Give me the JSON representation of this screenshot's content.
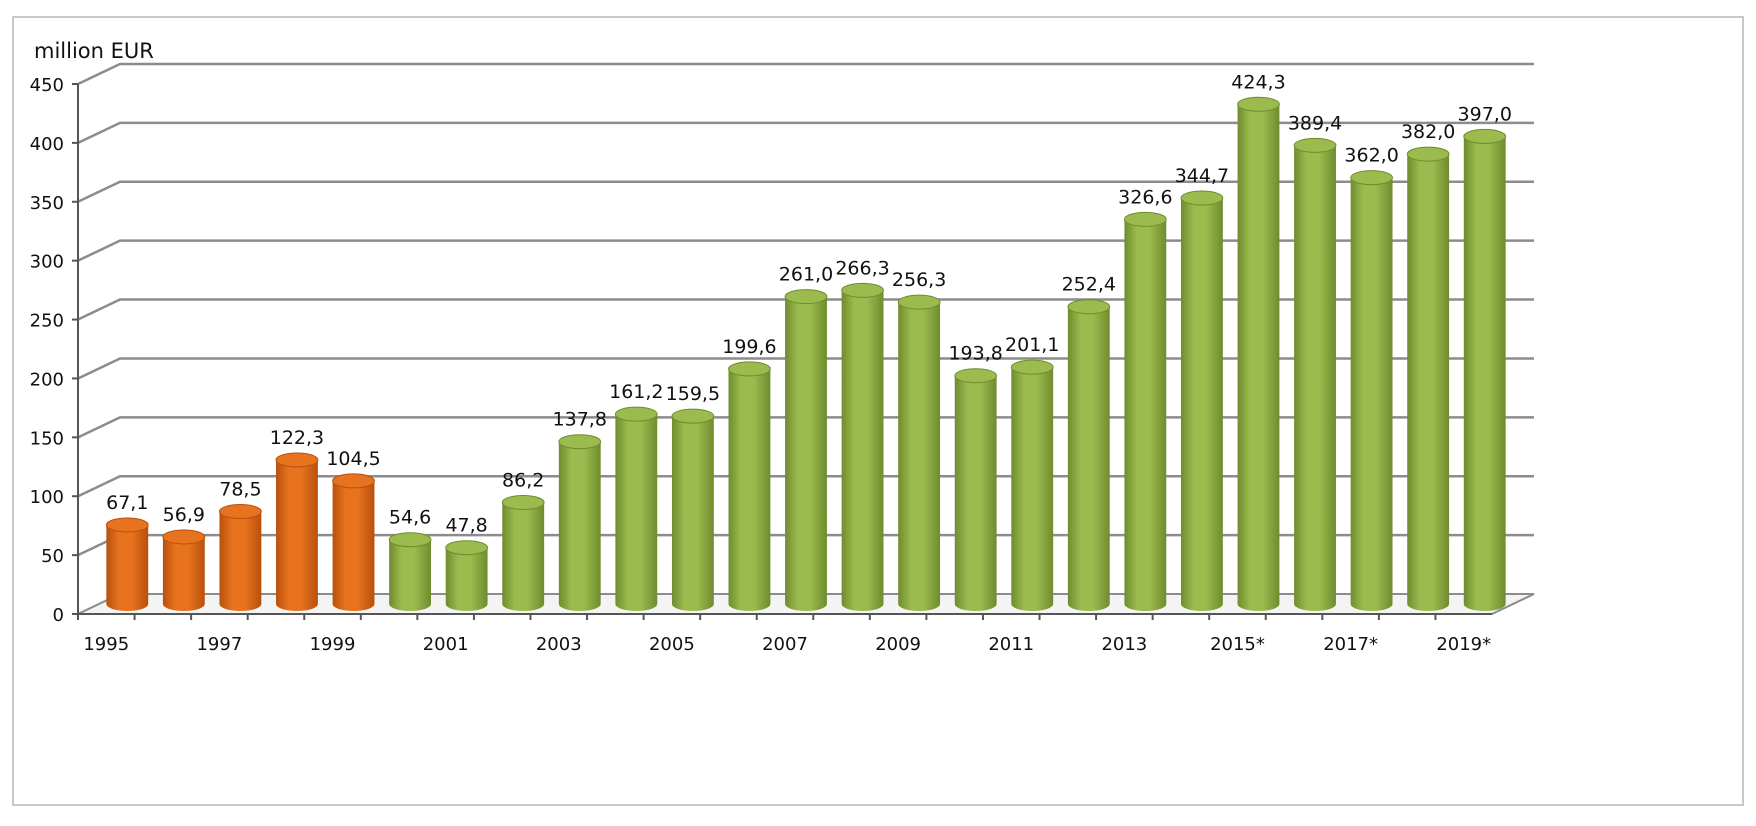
{
  "chart_data": {
    "type": "bar",
    "title": "",
    "ylabel": "million  EUR",
    "xlabel": "",
    "ylim": [
      0,
      450
    ],
    "yticks": [
      0,
      50,
      100,
      150,
      200,
      250,
      300,
      350,
      400,
      450
    ],
    "grid": true,
    "legend": "none",
    "categories": [
      "1995",
      "1996",
      "1997",
      "1998",
      "1999",
      "2000",
      "2001",
      "2002",
      "2003",
      "2004",
      "2005",
      "2006",
      "2007",
      "2008",
      "2009",
      "2010",
      "2011",
      "2012",
      "2013",
      "2014",
      "2015*",
      "2016",
      "2017*",
      "2018",
      "2019*"
    ],
    "x_tick_labels": [
      "1995",
      "1997",
      "1999",
      "2001",
      "2003",
      "2005",
      "2007",
      "2009",
      "2011",
      "2013",
      "2015*",
      "2017*",
      "2019*"
    ],
    "values": [
      67.1,
      56.9,
      78.5,
      122.3,
      104.5,
      54.6,
      47.8,
      86.2,
      137.8,
      161.2,
      159.5,
      199.6,
      261.0,
      266.3,
      256.3,
      193.8,
      201.1,
      252.4,
      326.6,
      344.7,
      424.3,
      389.4,
      362.0,
      382.0,
      397.0
    ],
    "value_labels": [
      "67,1",
      "56,9",
      "78,5",
      "122,3",
      "104,5",
      "54,6",
      "47,8",
      "86,2",
      "137,8",
      "161,2",
      "159,5",
      "199,6",
      "261,0",
      "266,3",
      "256,3",
      "193,8",
      "201,1",
      "252,4",
      "326,6",
      "344,7",
      "424,3",
      "389,4",
      "362,0",
      "382,0",
      "397,0"
    ],
    "colors": {
      "highlight": "#e8731f",
      "highlight_dark": "#b8500c",
      "default": "#9bbb4f",
      "default_dark": "#6f8c2e",
      "grid": "#8c8c8c"
    },
    "highlight_count": 5
  }
}
